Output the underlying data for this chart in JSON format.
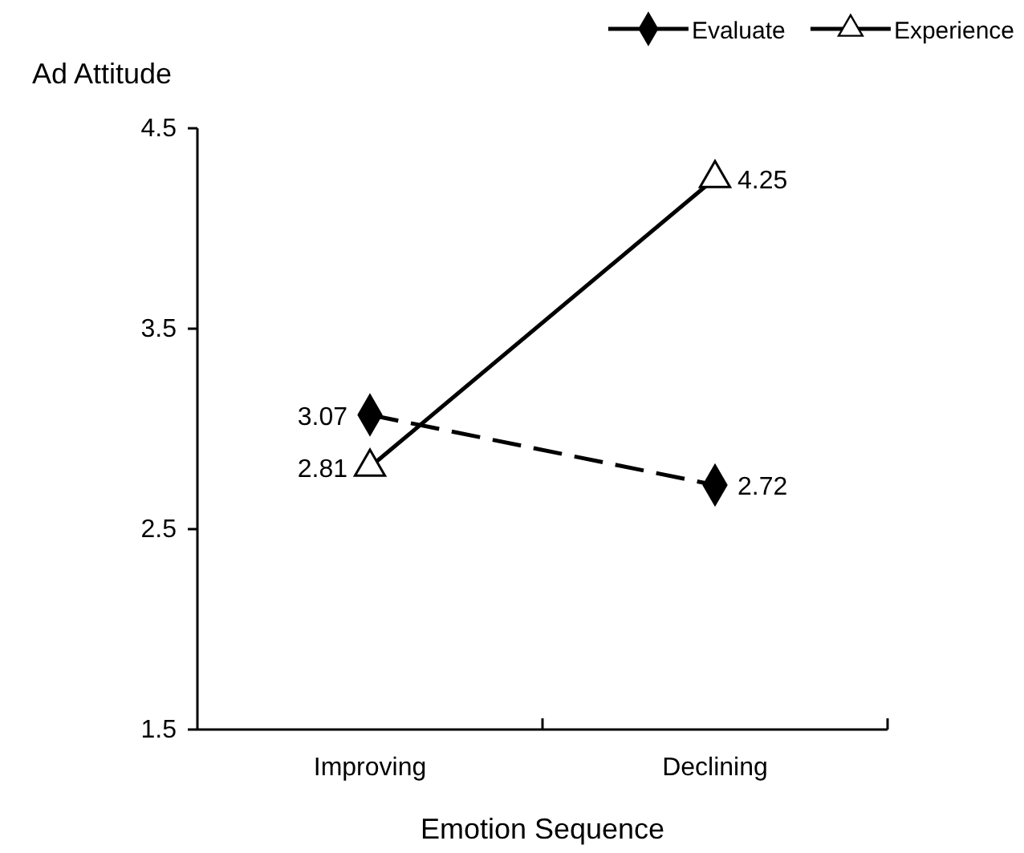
{
  "chart_data": {
    "type": "line",
    "xlabel": "Emotion Sequence",
    "ylabel": "Ad Attitude",
    "categories": [
      "Improving",
      "Declining"
    ],
    "series": [
      {
        "name": "Evaluate",
        "color": "#000000",
        "values": [
          3.07,
          2.72
        ],
        "marker": "diamond",
        "line_style": "dashed"
      },
      {
        "name": "Experience",
        "color": "#000000",
        "values": [
          2.81,
          4.25
        ],
        "marker": "triangle",
        "line_style": "solid"
      }
    ],
    "ylim": [
      1.5,
      4.5
    ],
    "yticks": [
      1.5,
      2.5,
      3.5,
      4.5
    ],
    "data_labels": true,
    "legend": "top right",
    "grid": false
  }
}
